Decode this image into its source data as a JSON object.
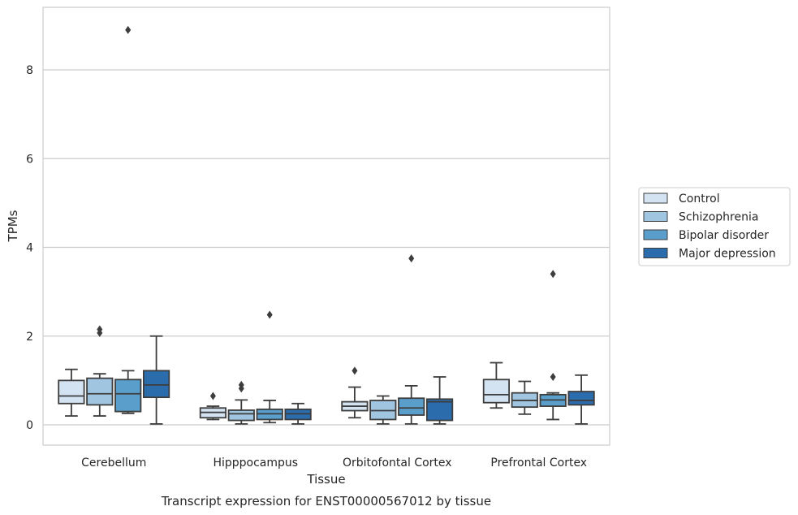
{
  "caption": "Transcript expression for ENST00000567012 by tissue",
  "chart_data": {
    "type": "box",
    "xlabel": "Tissue",
    "ylabel": "TPMs",
    "ylim": [
      -0.45,
      9.5
    ],
    "yticks": [
      0,
      2,
      4,
      6,
      8
    ],
    "grid": "horizontal",
    "legend_position": "right",
    "categories": [
      "Cerebellum",
      "Hipppocampus",
      "Orbitofontal Cortex",
      "Prefrontal Cortex"
    ],
    "series": [
      {
        "name": "Control",
        "color": "#d3e3f1",
        "boxes": [
          {
            "whislo": 0.2,
            "q1": 0.48,
            "med": 0.65,
            "q3": 1.0,
            "whishi": 1.25,
            "fliers": []
          },
          {
            "whislo": 0.12,
            "q1": 0.16,
            "med": 0.28,
            "q3": 0.38,
            "whishi": 0.42,
            "fliers": [
              0.65
            ]
          },
          {
            "whislo": 0.16,
            "q1": 0.32,
            "med": 0.42,
            "q3": 0.52,
            "whishi": 0.85,
            "fliers": [
              1.22
            ]
          },
          {
            "whislo": 0.38,
            "q1": 0.5,
            "med": 0.68,
            "q3": 1.02,
            "whishi": 1.4,
            "fliers": []
          }
        ]
      },
      {
        "name": "Schizophrenia",
        "color": "#9fc5e0",
        "boxes": [
          {
            "whislo": 0.2,
            "q1": 0.45,
            "med": 0.7,
            "q3": 1.05,
            "whishi": 1.15,
            "fliers": [
              2.07,
              2.15
            ]
          },
          {
            "whislo": 0.02,
            "q1": 0.1,
            "med": 0.25,
            "q3": 0.33,
            "whishi": 0.56,
            "fliers": [
              0.82,
              0.9
            ]
          },
          {
            "whislo": 0.02,
            "q1": 0.12,
            "med": 0.32,
            "q3": 0.55,
            "whishi": 0.65,
            "fliers": []
          },
          {
            "whislo": 0.24,
            "q1": 0.4,
            "med": 0.55,
            "q3": 0.72,
            "whishi": 0.98,
            "fliers": []
          }
        ]
      },
      {
        "name": "Bipolar disorder",
        "color": "#5a9ecc",
        "boxes": [
          {
            "whislo": 0.26,
            "q1": 0.3,
            "med": 0.7,
            "q3": 1.02,
            "whishi": 1.22,
            "fliers": [
              8.9
            ]
          },
          {
            "whislo": 0.05,
            "q1": 0.12,
            "med": 0.25,
            "q3": 0.35,
            "whishi": 0.55,
            "fliers": [
              2.48
            ]
          },
          {
            "whislo": 0.02,
            "q1": 0.22,
            "med": 0.38,
            "q3": 0.6,
            "whishi": 0.88,
            "fliers": [
              3.75
            ]
          },
          {
            "whislo": 0.12,
            "q1": 0.42,
            "med": 0.56,
            "q3": 0.68,
            "whishi": 0.72,
            "fliers": [
              1.08,
              3.4
            ]
          }
        ]
      },
      {
        "name": "Major depression",
        "color": "#2b6cad",
        "boxes": [
          {
            "whislo": 0.02,
            "q1": 0.62,
            "med": 0.9,
            "q3": 1.22,
            "whishi": 2.0,
            "fliers": []
          },
          {
            "whislo": 0.02,
            "q1": 0.12,
            "med": 0.25,
            "q3": 0.35,
            "whishi": 0.48,
            "fliers": []
          },
          {
            "whislo": 0.02,
            "q1": 0.1,
            "med": 0.52,
            "q3": 0.58,
            "whishi": 1.08,
            "fliers": []
          },
          {
            "whislo": 0.02,
            "q1": 0.45,
            "med": 0.55,
            "q3": 0.75,
            "whishi": 1.12,
            "fliers": []
          }
        ]
      }
    ]
  }
}
